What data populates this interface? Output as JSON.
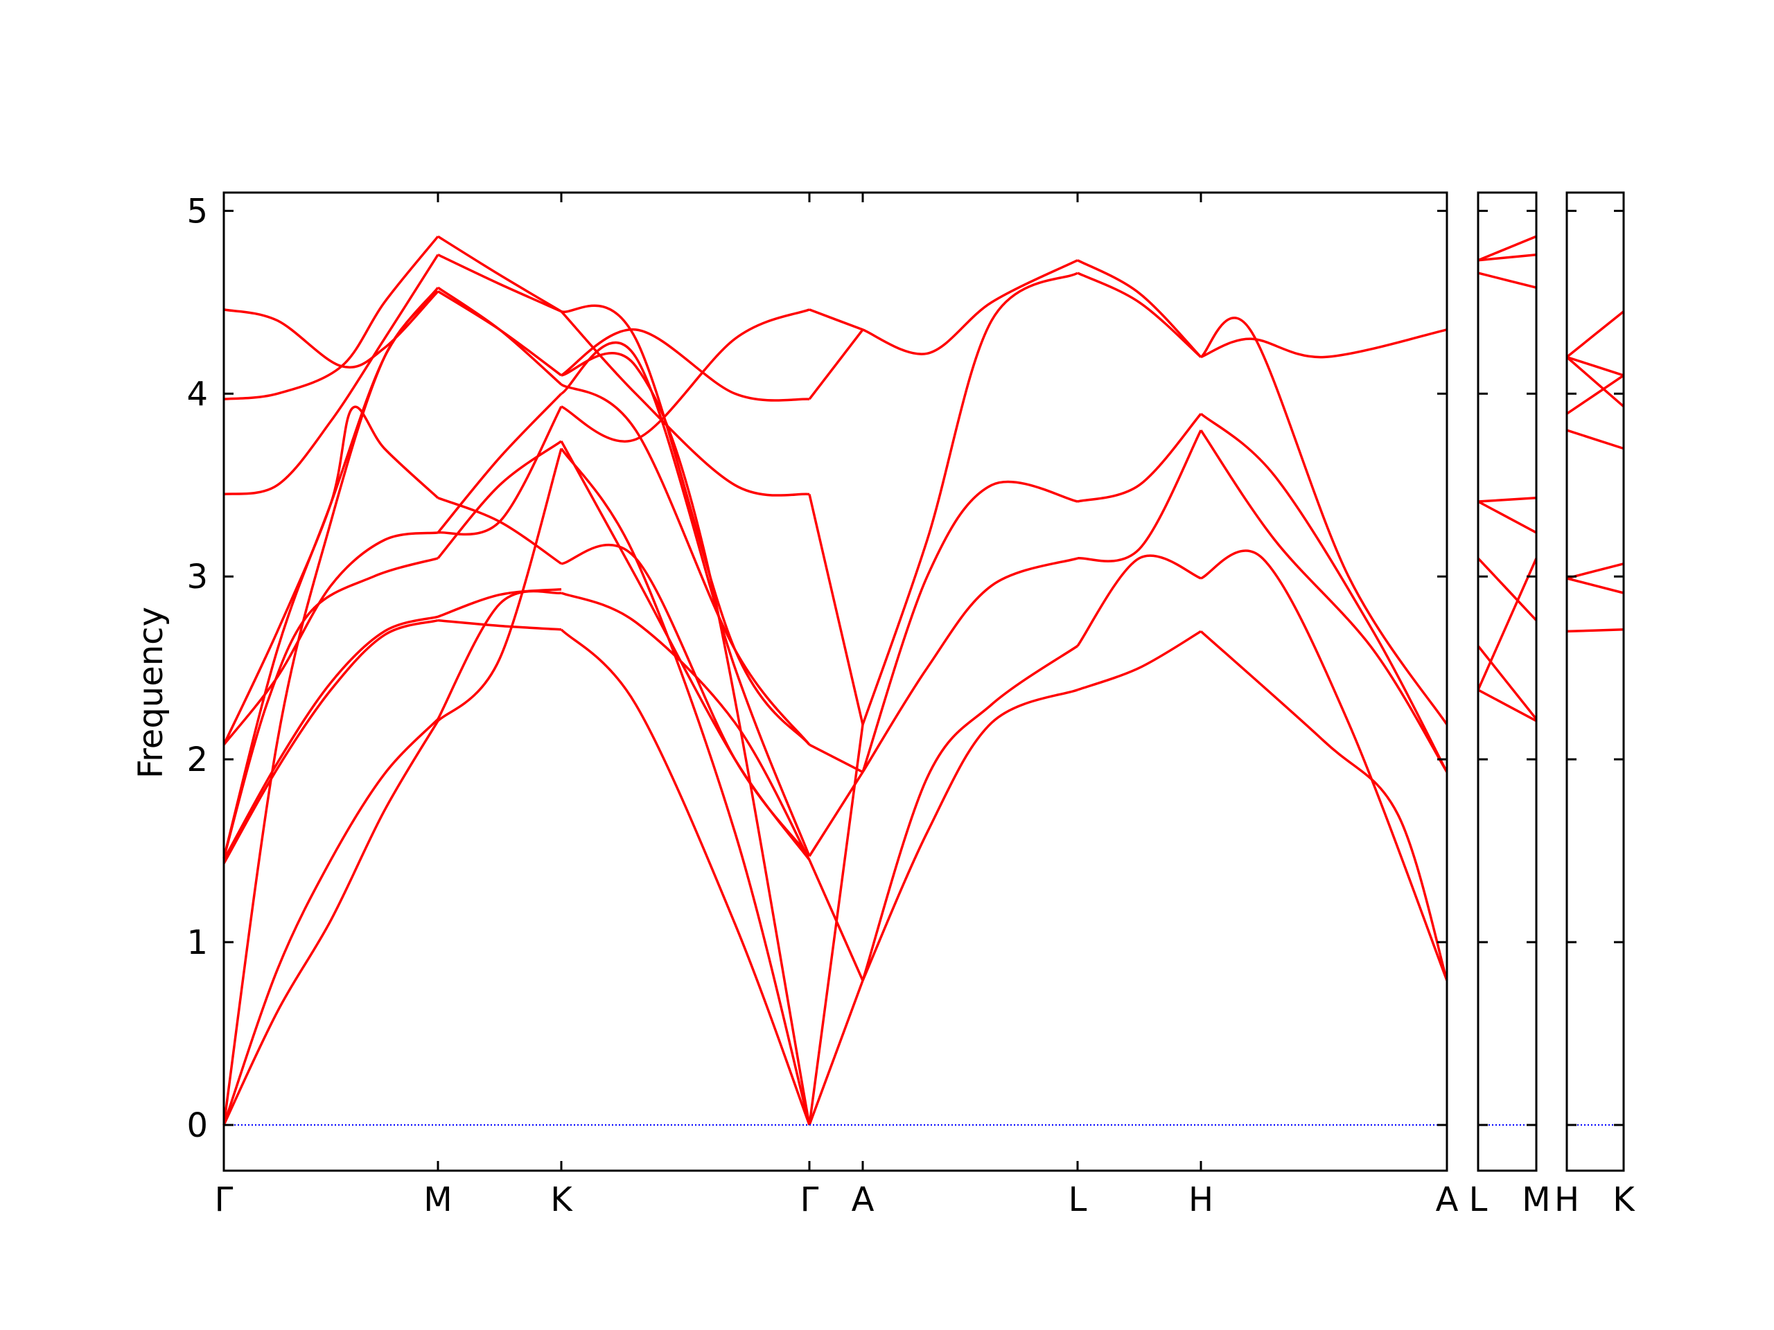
{
  "chart_data": {
    "type": "line",
    "title": "",
    "ylabel": "Frequency",
    "ylim": [
      -0.25,
      5.1
    ],
    "yticks": [
      0,
      1,
      2,
      3,
      4,
      5
    ],
    "xticks": [
      "Γ",
      "M",
      "K",
      "Γ",
      "A",
      "L",
      "H",
      "A",
      "L",
      "M",
      "H",
      "K"
    ],
    "panels": [
      {
        "path": [
          "Γ",
          "M",
          "K",
          "Γ",
          "A",
          "L",
          "H",
          "A"
        ]
      },
      {
        "path": [
          "L",
          "M"
        ]
      },
      {
        "path": [
          "H",
          "K"
        ]
      }
    ],
    "zero_line": 0,
    "line_color": "#ff0000",
    "zero_line_color": "#0000ff",
    "grid": false,
    "series": [
      {
        "segment": "Γ-M",
        "points": [
          [
            0,
            0
          ],
          [
            0.25,
            0.62
          ],
          [
            0.5,
            1.12
          ],
          [
            0.75,
            1.72
          ],
          [
            1,
            2.21
          ]
        ]
      },
      {
        "segment": "Γ-M",
        "points": [
          [
            0,
            0
          ],
          [
            0.25,
            0.85
          ],
          [
            0.5,
            1.45
          ],
          [
            0.75,
            1.92
          ],
          [
            1,
            2.22
          ]
        ]
      },
      {
        "segment": "Γ-M",
        "points": [
          [
            0,
            1.43
          ],
          [
            0.25,
            1.95
          ],
          [
            0.5,
            2.38
          ],
          [
            0.75,
            2.68
          ],
          [
            1,
            2.76
          ]
        ]
      },
      {
        "segment": "Γ-M",
        "points": [
          [
            0,
            1.45
          ],
          [
            0.25,
            1.98
          ],
          [
            0.5,
            2.42
          ],
          [
            0.75,
            2.7
          ],
          [
            1,
            2.78
          ]
        ]
      },
      {
        "segment": "Γ-M",
        "points": [
          [
            0,
            0
          ],
          [
            0.25,
            2.1
          ],
          [
            0.5,
            3.3
          ],
          [
            0.75,
            4.2
          ],
          [
            1,
            4.56
          ]
        ]
      },
      {
        "segment": "Γ-M",
        "points": [
          [
            0,
            1.46
          ],
          [
            0.2,
            2.3
          ],
          [
            0.4,
            2.8
          ],
          [
            0.7,
            3.0
          ],
          [
            1,
            3.1
          ]
        ]
      },
      {
        "segment": "Γ-M",
        "points": [
          [
            0,
            2.08
          ],
          [
            0.25,
            2.45
          ],
          [
            0.5,
            2.95
          ],
          [
            0.75,
            3.2
          ],
          [
            1,
            3.24
          ]
        ]
      },
      {
        "segment": "Γ-M",
        "points": [
          [
            0,
            1.46
          ],
          [
            0.25,
            2.6
          ],
          [
            0.5,
            3.4
          ],
          [
            0.75,
            4.2
          ],
          [
            1,
            4.58
          ]
        ]
      },
      {
        "segment": "Γ-M",
        "points": [
          [
            0,
            2.08
          ],
          [
            0.25,
            2.7
          ],
          [
            0.5,
            3.4
          ],
          [
            0.6,
            3.92
          ],
          [
            0.75,
            3.7
          ],
          [
            1,
            3.43
          ]
        ]
      },
      {
        "segment": "Γ-M",
        "points": [
          [
            0,
            3.45
          ],
          [
            0.25,
            3.5
          ],
          [
            0.5,
            3.85
          ],
          [
            0.75,
            4.3
          ],
          [
            1,
            4.76
          ]
        ]
      },
      {
        "segment": "Γ-M",
        "points": [
          [
            0,
            3.97
          ],
          [
            0.25,
            4.0
          ],
          [
            0.55,
            4.15
          ],
          [
            0.75,
            4.5
          ],
          [
            1,
            4.86
          ]
        ]
      },
      {
        "segment": "Γ-M",
        "points": [
          [
            0,
            4.46
          ],
          [
            0.25,
            4.4
          ],
          [
            0.55,
            4.15
          ],
          [
            0.75,
            4.25
          ],
          [
            1,
            4.56
          ]
        ]
      }
    ]
  }
}
